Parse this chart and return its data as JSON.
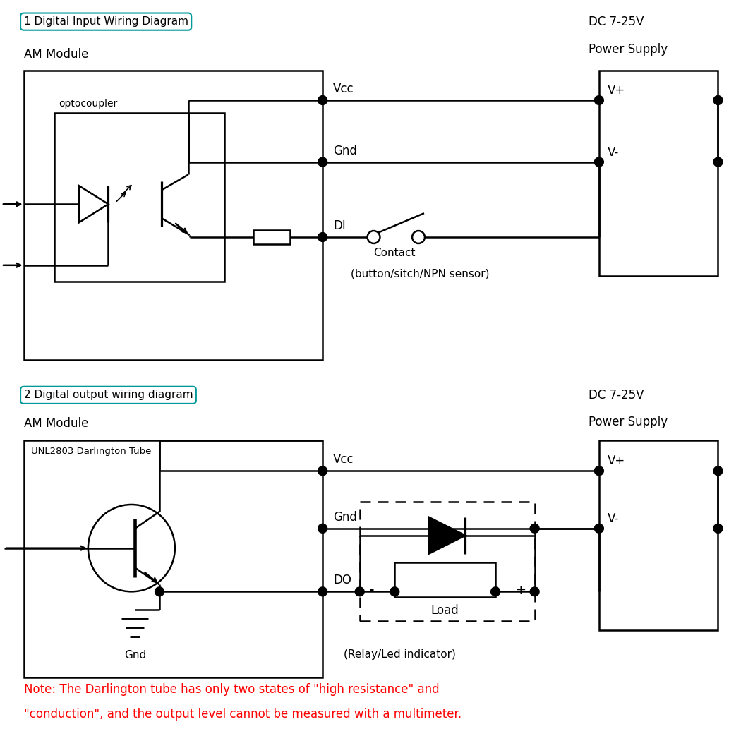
{
  "title1": "1 Digital Input Wiring Diagram",
  "title2": "2 Digital output wiring diagram",
  "label_am_module": "AM Module",
  "label_am_module2": "AM Module",
  "label_dc1": "DC 7-25V",
  "label_ps1": "Power Supply",
  "label_dc2": "DC 7-25V",
  "label_ps2": "Power Supply",
  "label_vcc1": "Vcc",
  "label_gnd1": "Gnd",
  "label_di": "DI",
  "label_vplus1": "V+",
  "label_vminus1": "V-",
  "label_optocoupler": "optocoupler",
  "label_contact": "Contact",
  "label_contact2": "(button/sitch/NPN sensor)",
  "label_vcc2": "Vcc",
  "label_gnd2": "Gnd",
  "label_do": "DO",
  "label_vplus2": "V+",
  "label_vminus2": "V-",
  "label_darlington": "UNL2803 Darlington Tube",
  "label_gnd_sym": "Gnd",
  "label_load": "Load",
  "label_relay": "(Relay/Led indicator)",
  "note_line1": "Note: The Darlington tube has only two states of \"high resistance\" and",
  "note_line2": "\"conduction\", and the output level cannot be measured with a multimeter.",
  "bg_color": "#ffffff",
  "line_color": "#000000",
  "note_color": "#ff0000"
}
